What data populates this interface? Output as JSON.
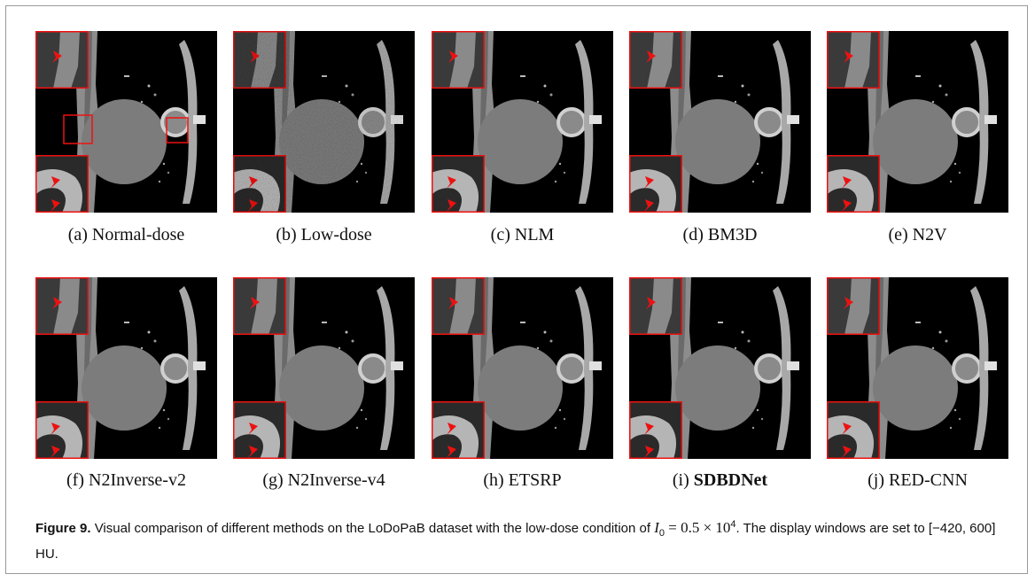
{
  "panels": [
    {
      "label": "(a)",
      "name": "Normal-dose"
    },
    {
      "label": "(b)",
      "name": "Low-dose"
    },
    {
      "label": "(c)",
      "name": "NLM"
    },
    {
      "label": "(d)",
      "name": "BM3D"
    },
    {
      "label": "(e)",
      "name": "N2V"
    },
    {
      "label": "(f)",
      "name": "N2Inverse-v2"
    },
    {
      "label": "(g)",
      "name": "N2Inverse-v4"
    },
    {
      "label": "(h)",
      "name": "ETSRP"
    },
    {
      "label": "(i)",
      "name": "SDBDNet"
    },
    {
      "label": "(j)",
      "name": "RED-CNN"
    }
  ],
  "caption": {
    "label": "Figure 9.",
    "text": "Visual comparison of different methods on the LoDoPaB dataset with the low-dose condition of ",
    "math_var": "I",
    "math_sub": "0",
    "math_rest": " = 0.5 × 10",
    "math_sup": "4",
    "text_end": ". The display windows are set to [−420, 600] HU."
  }
}
